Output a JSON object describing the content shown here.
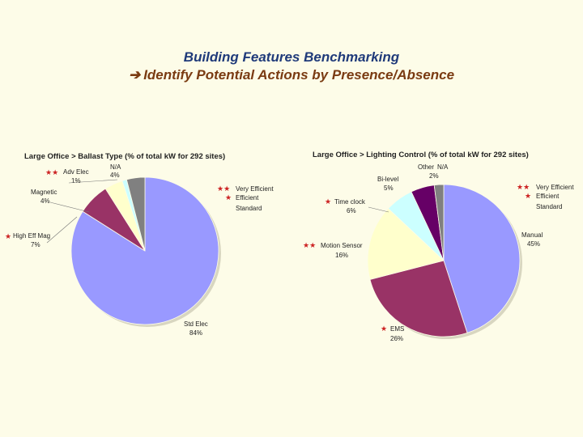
{
  "title": {
    "line1": "Building Features Benchmarking",
    "arrow": "➔",
    "line2": "Identify Potential Actions by Presence/Absence"
  },
  "legend_marks": {
    "very_efficient": "★★",
    "efficient": "★"
  },
  "chart_data": [
    {
      "type": "pie",
      "title": "Large Office > Ballast Type (% of total kW for 292 sites)",
      "labels": [
        "Std Elec",
        "High Eff Mag",
        "Magnetic",
        "Adv Elec",
        "N/A"
      ],
      "values": [
        84,
        7,
        4,
        1,
        4
      ],
      "value_labels": [
        "84%",
        "7%",
        "4%",
        "1%",
        "4%"
      ],
      "marks": [
        "",
        "★",
        "",
        "★★",
        ""
      ],
      "colors": [
        "#9999ff",
        "#993366",
        "#ffffcc",
        "#ccffff",
        "#808080"
      ],
      "legend": [
        "Very Efficient",
        "Efficient",
        "Standard"
      ]
    },
    {
      "type": "pie",
      "title": "Large Office > Lighting Control  (% of total kW for 292 sites)",
      "labels": [
        "Manual",
        "EMS",
        "Motion Sensor",
        "Time clock",
        "Bi-level",
        "Other",
        "N/A"
      ],
      "values": [
        45,
        26,
        16,
        6,
        5,
        2,
        0
      ],
      "value_labels": [
        "45%",
        "26%",
        "16%",
        "6%",
        "5%",
        "2%",
        ""
      ],
      "marks": [
        "",
        "★",
        "★★",
        "★",
        "",
        "",
        ""
      ],
      "colors": [
        "#9999ff",
        "#993366",
        "#ffffcc",
        "#ccffff",
        "#660066",
        "#808080",
        "#808080"
      ],
      "legend": [
        "Very Efficient",
        "Efficient",
        "Standard"
      ]
    }
  ]
}
